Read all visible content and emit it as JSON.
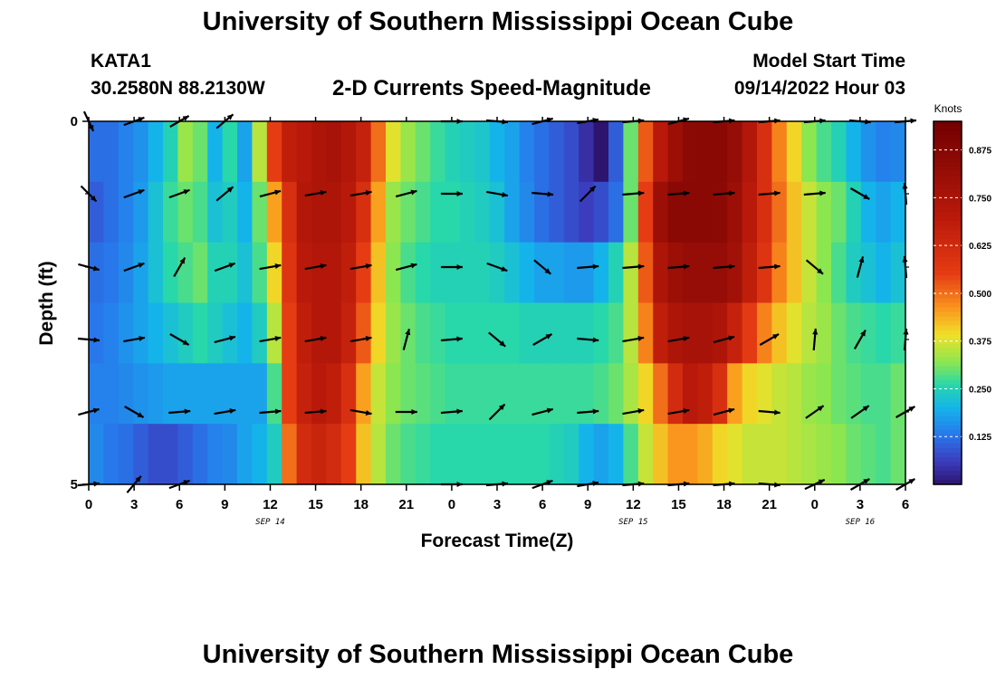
{
  "header": {
    "title": "University of Southern Mississippi Ocean Cube",
    "station_id": "KATA1",
    "station_location": "30.2580N  88.2130W",
    "subtitle": "2-D Currents Speed-Magnitude",
    "model_label": "Model Start Time",
    "model_time": "09/14/2022 Hour 03"
  },
  "footer": {
    "title": "University of Southern Mississippi Ocean Cube"
  },
  "chart_data": {
    "type": "heatmap",
    "title": "2-D Currents Speed-Magnitude",
    "xlabel": "Forecast Time(Z)",
    "ylabel": "Depth (ft)",
    "x_range_hours": [
      0,
      54
    ],
    "y_range": [
      0,
      5
    ],
    "y_ticks": [
      "0",
      "5"
    ],
    "x_tick_hours": [
      0,
      3,
      6,
      9,
      12,
      15,
      18,
      21,
      24,
      27,
      30,
      33,
      36,
      39,
      42,
      45,
      48,
      51,
      54
    ],
    "x_tick_labels": [
      "0",
      "3",
      "6",
      "9",
      "12",
      "15",
      "18",
      "21",
      "0",
      "3",
      "6",
      "9",
      "12",
      "15",
      "18",
      "21",
      "0",
      "3",
      "6"
    ],
    "day_labels": [
      {
        "hour": 12,
        "label": "SEP 14"
      },
      {
        "hour": 36,
        "label": "SEP 15"
      },
      {
        "hour": 51,
        "label": "SEP 16"
      }
    ],
    "colorbar": {
      "unit": "Knots",
      "min": 0.0,
      "max": 0.95,
      "ticks": [
        0.125,
        0.25,
        0.375,
        0.5,
        0.625,
        0.75,
        0.875
      ],
      "tick_labels": [
        "0.125",
        "0.250",
        "0.375",
        "0.500",
        "0.625",
        "0.750",
        "0.875"
      ]
    },
    "depth_levels": [
      0,
      1,
      2,
      3,
      4,
      5
    ],
    "speed_profile_keys": {
      "hours": [
        0,
        1,
        2,
        3,
        4,
        5,
        6,
        7,
        8,
        9,
        10,
        11,
        12,
        13,
        14,
        15,
        16,
        17,
        18,
        19,
        20,
        21,
        22,
        23,
        24,
        25,
        26,
        27,
        28,
        29,
        30,
        31,
        32,
        33,
        34,
        35,
        36,
        37,
        38,
        39,
        40,
        41,
        42,
        43,
        44,
        45,
        46,
        47,
        48,
        49,
        50,
        51,
        52,
        53,
        54
      ]
    },
    "speed_knots": [
      [
        0.12,
        0.12,
        0.14,
        0.16,
        0.2,
        0.25,
        0.33,
        0.3,
        0.2,
        0.26,
        0.18,
        0.35,
        0.55,
        0.68,
        0.7,
        0.74,
        0.76,
        0.72,
        0.66,
        0.5,
        0.38,
        0.33,
        0.3,
        0.27,
        0.25,
        0.24,
        0.23,
        0.2,
        0.18,
        0.14,
        0.12,
        0.1,
        0.08,
        0.04,
        0.0,
        0.1,
        0.3,
        0.52,
        0.7,
        0.8,
        0.85,
        0.86,
        0.86,
        0.82,
        0.72,
        0.6,
        0.48,
        0.4,
        0.32,
        0.28,
        0.25,
        0.2,
        0.16,
        0.14,
        0.15
      ],
      [
        0.1,
        0.12,
        0.14,
        0.17,
        0.22,
        0.27,
        0.3,
        0.28,
        0.22,
        0.24,
        0.2,
        0.3,
        0.45,
        0.6,
        0.72,
        0.74,
        0.74,
        0.7,
        0.6,
        0.45,
        0.33,
        0.3,
        0.28,
        0.26,
        0.26,
        0.25,
        0.24,
        0.22,
        0.18,
        0.15,
        0.12,
        0.1,
        0.08,
        0.06,
        0.08,
        0.12,
        0.3,
        0.55,
        0.8,
        0.86,
        0.86,
        0.86,
        0.85,
        0.8,
        0.7,
        0.6,
        0.5,
        0.42,
        0.36,
        0.32,
        0.3,
        0.25,
        0.2,
        0.18,
        0.2
      ],
      [
        0.12,
        0.13,
        0.15,
        0.18,
        0.22,
        0.26,
        0.28,
        0.3,
        0.25,
        0.25,
        0.22,
        0.28,
        0.4,
        0.58,
        0.7,
        0.72,
        0.72,
        0.68,
        0.55,
        0.42,
        0.32,
        0.28,
        0.26,
        0.25,
        0.25,
        0.25,
        0.25,
        0.24,
        0.22,
        0.2,
        0.18,
        0.18,
        0.17,
        0.17,
        0.2,
        0.25,
        0.35,
        0.52,
        0.74,
        0.8,
        0.82,
        0.82,
        0.82,
        0.78,
        0.68,
        0.58,
        0.48,
        0.42,
        0.36,
        0.32,
        0.28,
        0.24,
        0.22,
        0.2,
        0.22
      ],
      [
        0.13,
        0.14,
        0.16,
        0.18,
        0.2,
        0.22,
        0.24,
        0.26,
        0.24,
        0.22,
        0.2,
        0.24,
        0.35,
        0.55,
        0.68,
        0.72,
        0.72,
        0.66,
        0.52,
        0.4,
        0.33,
        0.3,
        0.28,
        0.27,
        0.26,
        0.26,
        0.26,
        0.26,
        0.26,
        0.25,
        0.25,
        0.25,
        0.25,
        0.25,
        0.26,
        0.28,
        0.35,
        0.48,
        0.68,
        0.74,
        0.76,
        0.76,
        0.74,
        0.66,
        0.56,
        0.48,
        0.42,
        0.38,
        0.35,
        0.33,
        0.3,
        0.28,
        0.27,
        0.26,
        0.27
      ],
      [
        0.14,
        0.14,
        0.15,
        0.16,
        0.17,
        0.18,
        0.18,
        0.18,
        0.18,
        0.18,
        0.18,
        0.18,
        0.28,
        0.55,
        0.66,
        0.7,
        0.68,
        0.6,
        0.45,
        0.36,
        0.32,
        0.3,
        0.29,
        0.28,
        0.27,
        0.27,
        0.27,
        0.27,
        0.27,
        0.27,
        0.27,
        0.27,
        0.27,
        0.27,
        0.28,
        0.3,
        0.34,
        0.4,
        0.5,
        0.62,
        0.7,
        0.68,
        0.6,
        0.45,
        0.4,
        0.38,
        0.36,
        0.35,
        0.33,
        0.32,
        0.3,
        0.29,
        0.28,
        0.28,
        0.3
      ],
      [
        0.15,
        0.13,
        0.12,
        0.1,
        0.08,
        0.08,
        0.1,
        0.12,
        0.14,
        0.15,
        0.18,
        0.2,
        0.24,
        0.5,
        0.62,
        0.65,
        0.62,
        0.55,
        0.42,
        0.35,
        0.3,
        0.28,
        0.27,
        0.26,
        0.26,
        0.26,
        0.26,
        0.26,
        0.26,
        0.26,
        0.26,
        0.25,
        0.24,
        0.2,
        0.18,
        0.2,
        0.28,
        0.36,
        0.42,
        0.46,
        0.46,
        0.44,
        0.4,
        0.38,
        0.36,
        0.36,
        0.36,
        0.35,
        0.34,
        0.33,
        0.32,
        0.3,
        0.29,
        0.28,
        0.3
      ]
    ],
    "vector_rows": [
      [
        [
          0,
          65
        ],
        [
          3,
          -20
        ],
        [
          6,
          -30
        ],
        [
          9,
          -40
        ],
        [
          24,
          0
        ],
        [
          27,
          5
        ],
        [
          30,
          -15
        ],
        [
          33,
          -10
        ],
        [
          36,
          -5
        ],
        [
          39,
          -15
        ],
        [
          42,
          -5
        ],
        [
          45,
          -5
        ],
        [
          48,
          -5
        ],
        [
          51,
          5
        ],
        [
          54,
          -5
        ]
      ],
      [
        [
          0,
          45
        ],
        [
          3,
          -20
        ],
        [
          6,
          -20
        ],
        [
          9,
          -40
        ],
        [
          12,
          -15
        ],
        [
          15,
          -10
        ],
        [
          18,
          -10
        ],
        [
          21,
          -15
        ],
        [
          24,
          0
        ],
        [
          27,
          10
        ],
        [
          30,
          5
        ],
        [
          33,
          -45
        ],
        [
          36,
          -5
        ],
        [
          39,
          -5
        ],
        [
          42,
          -5
        ],
        [
          45,
          -5
        ],
        [
          48,
          -5
        ],
        [
          51,
          30
        ],
        [
          54,
          -95
        ]
      ],
      [
        [
          0,
          15
        ],
        [
          3,
          -20
        ],
        [
          6,
          -60
        ],
        [
          9,
          -20
        ],
        [
          12,
          -10
        ],
        [
          15,
          -10
        ],
        [
          18,
          -10
        ],
        [
          21,
          -15
        ],
        [
          24,
          0
        ],
        [
          27,
          20
        ],
        [
          30,
          40
        ],
        [
          33,
          -5
        ],
        [
          36,
          -5
        ],
        [
          39,
          -5
        ],
        [
          42,
          -5
        ],
        [
          45,
          -5
        ],
        [
          48,
          40
        ],
        [
          51,
          -75
        ],
        [
          54,
          -95
        ]
      ],
      [
        [
          0,
          5
        ],
        [
          3,
          -10
        ],
        [
          6,
          30
        ],
        [
          9,
          -15
        ],
        [
          12,
          -10
        ],
        [
          15,
          -10
        ],
        [
          18,
          -10
        ],
        [
          21,
          -75
        ],
        [
          24,
          -5
        ],
        [
          27,
          40
        ],
        [
          30,
          -30
        ],
        [
          33,
          5
        ],
        [
          36,
          -10
        ],
        [
          39,
          -10
        ],
        [
          42,
          -15
        ],
        [
          45,
          -30
        ],
        [
          48,
          -85
        ],
        [
          51,
          -60
        ],
        [
          54,
          -85
        ]
      ],
      [
        [
          0,
          -15
        ],
        [
          3,
          30
        ],
        [
          6,
          -5
        ],
        [
          9,
          -10
        ],
        [
          12,
          -5
        ],
        [
          15,
          -5
        ],
        [
          18,
          10
        ],
        [
          21,
          0
        ],
        [
          24,
          -5
        ],
        [
          27,
          -45
        ],
        [
          30,
          -15
        ],
        [
          33,
          -5
        ],
        [
          36,
          -10
        ],
        [
          39,
          -10
        ],
        [
          42,
          -15
        ],
        [
          45,
          5
        ],
        [
          48,
          -35
        ],
        [
          51,
          -35
        ],
        [
          54,
          -30
        ]
      ],
      [
        [
          0,
          -5
        ],
        [
          3,
          -50
        ],
        [
          6,
          -20
        ],
        [
          24,
          0
        ],
        [
          27,
          -5
        ],
        [
          30,
          -20
        ],
        [
          33,
          -10
        ],
        [
          36,
          -5
        ],
        [
          39,
          -5
        ],
        [
          42,
          -5
        ],
        [
          45,
          5
        ],
        [
          48,
          -25
        ],
        [
          51,
          -30
        ],
        [
          54,
          -30
        ]
      ]
    ]
  }
}
